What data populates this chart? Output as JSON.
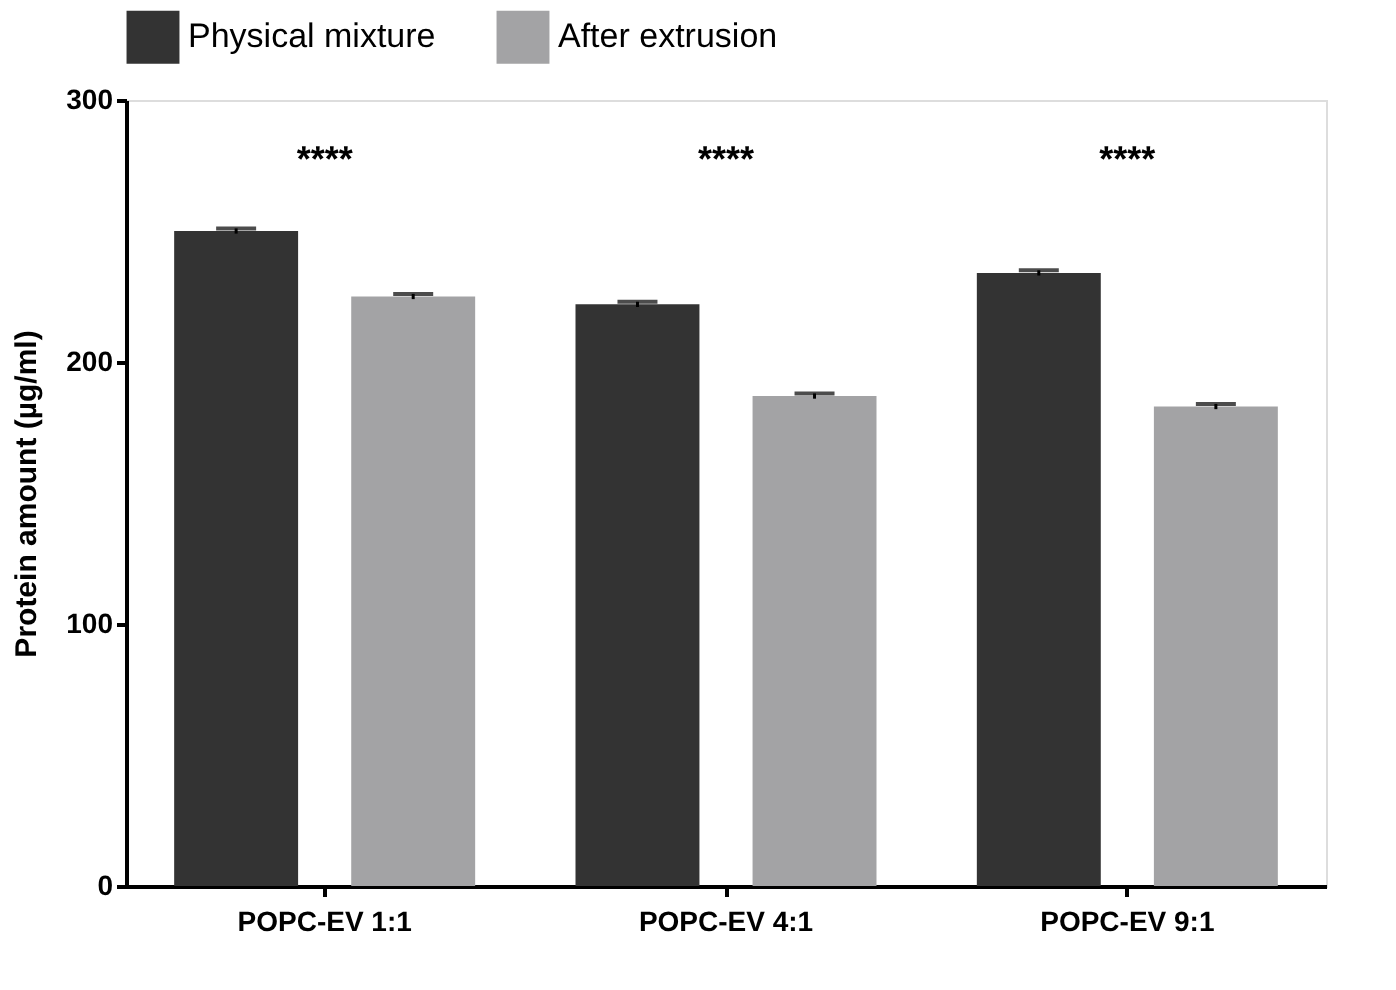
{
  "chart_data": {
    "type": "bar",
    "ylabel": "Protein amount (µg/ml)",
    "categories": [
      "POPC-EV 1:1",
      "POPC-EV 4:1",
      "POPC-EV 9:1"
    ],
    "series": [
      {
        "name": "Physical mixture",
        "color": "#333333",
        "values": [
          250,
          222,
          234
        ],
        "errors": [
          1,
          1,
          1
        ]
      },
      {
        "name": "After extrusion",
        "color": "#a3a3a5",
        "values": [
          225,
          187,
          183
        ],
        "errors": [
          1,
          1,
          1
        ]
      }
    ],
    "ylim": [
      0,
      300
    ],
    "yticks": [
      0,
      100,
      200,
      300
    ],
    "grid": false,
    "legend": "top",
    "annotations": [
      "****",
      "****",
      "****"
    ]
  }
}
